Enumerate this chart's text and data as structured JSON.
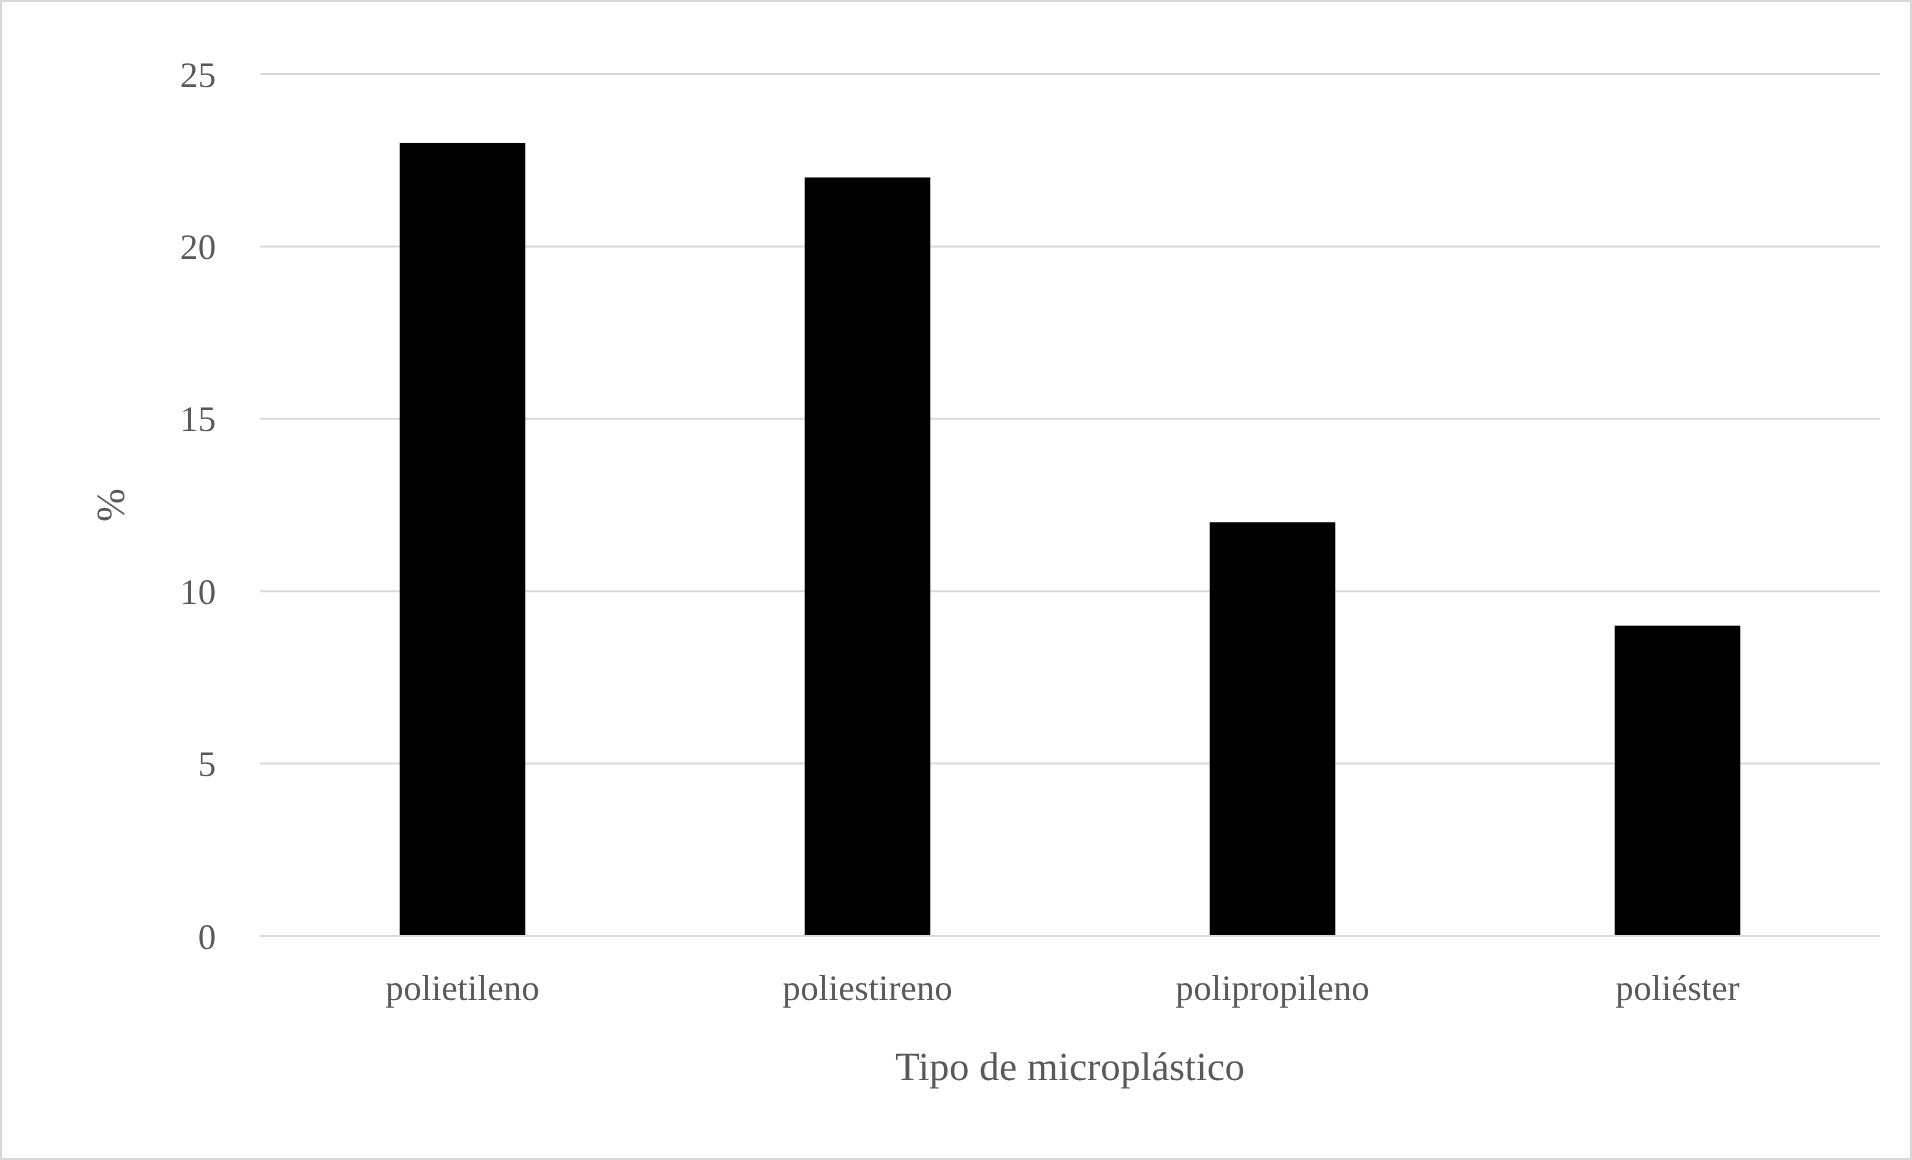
{
  "chart_data": {
    "type": "bar",
    "xlabel": "Tipo de microplástico",
    "ylabel": "%",
    "categories": [
      "polietileno",
      "poliestireno",
      "polipropileno",
      "poliéster"
    ],
    "values": [
      23,
      22,
      12,
      9
    ],
    "color": "#000000",
    "ylim": [
      0,
      25
    ],
    "yticks": [
      0,
      5,
      10,
      15,
      20,
      25
    ],
    "grid": "y"
  }
}
